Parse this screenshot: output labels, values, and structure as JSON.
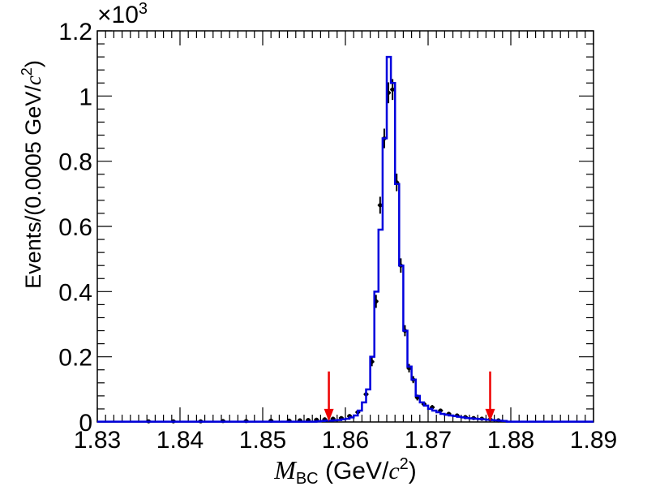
{
  "chart_data": {
    "type": "histogram",
    "xlabel_parts": {
      "var": "M",
      "sub": "BC",
      "unit_pre": " (GeV/",
      "unit_var": "c",
      "unit_sup": "2",
      "unit_post": ")"
    },
    "ylabel_parts": {
      "pre": "Events/(0.0005 GeV/",
      "var": "c",
      "sup": "2",
      "post": ")"
    },
    "y_multiplier": {
      "sym": "×10",
      "exp": "3"
    },
    "xlim": [
      1.83,
      1.89
    ],
    "ylim": [
      0,
      1.2
    ],
    "x_ticks": [
      1.83,
      1.84,
      1.85,
      1.86,
      1.87,
      1.88,
      1.89
    ],
    "y_ticks": [
      0,
      0.2,
      0.4,
      0.6,
      0.8,
      1,
      1.2
    ],
    "x_tick_labels": [
      "1.83",
      "1.84",
      "1.85",
      "1.86",
      "1.87",
      "1.88",
      "1.89"
    ],
    "y_tick_labels": [
      "0",
      "0.2",
      "0.4",
      "0.6",
      "0.8",
      "1",
      "1.2"
    ],
    "colors": {
      "fit": "#0000dd",
      "data": "#000000",
      "arrow": "#ee0000"
    },
    "cut_arrows_x": [
      1.858,
      1.8775
    ],
    "fit_edges": [
      1.83,
      1.8565,
      1.857,
      1.8575,
      1.858,
      1.8585,
      1.859,
      1.8595,
      1.86,
      1.8605,
      1.861,
      1.8615,
      1.862,
      1.8625,
      1.863,
      1.8635,
      1.864,
      1.8645,
      1.865,
      1.8655,
      1.866,
      1.8665,
      1.867,
      1.8675,
      1.868,
      1.8685,
      1.869,
      1.8695,
      1.87,
      1.8705,
      1.871,
      1.8715,
      1.872,
      1.8725,
      1.873,
      1.8735,
      1.874,
      1.8745,
      1.875,
      1.8755,
      1.876,
      1.8765,
      1.877,
      1.8775,
      1.878,
      1.8785,
      1.879,
      1.8795,
      1.89
    ],
    "fit_values": [
      0.001,
      0.002,
      0.003,
      0.004,
      0.004,
      0.005,
      0.006,
      0.008,
      0.01,
      0.014,
      0.02,
      0.035,
      0.06,
      0.1,
      0.2,
      0.4,
      0.59,
      0.87,
      1.12,
      1.04,
      0.73,
      0.48,
      0.28,
      0.17,
      0.13,
      0.08,
      0.06,
      0.05,
      0.04,
      0.035,
      0.03,
      0.025,
      0.022,
      0.02,
      0.018,
      0.016,
      0.014,
      0.012,
      0.011,
      0.01,
      0.009,
      0.008,
      0.007,
      0.006,
      0.005,
      0.004,
      0.003,
      0.001
    ],
    "data_points": {
      "x": [
        1.8362,
        1.8392,
        1.8425,
        1.8452,
        1.848,
        1.851,
        1.8532,
        1.8545,
        1.8555,
        1.8565,
        1.8575,
        1.8585,
        1.8595,
        1.8605,
        1.8615,
        1.8625,
        1.8632,
        1.8637,
        1.8642,
        1.8647,
        1.8652,
        1.8657,
        1.8662,
        1.8667,
        1.8672,
        1.8677,
        1.8682,
        1.8687,
        1.8695,
        1.8705,
        1.8715,
        1.8725,
        1.8735,
        1.8745,
        1.8755,
        1.8765,
        1.8775,
        1.8785
      ],
      "y": [
        0.002,
        0.002,
        0.002,
        0.003,
        0.003,
        0.004,
        0.004,
        0.005,
        0.006,
        0.007,
        0.008,
        0.01,
        0.012,
        0.018,
        0.03,
        0.085,
        0.185,
        0.37,
        0.665,
        0.87,
        1.01,
        1.02,
        0.735,
        0.48,
        0.28,
        0.165,
        0.13,
        0.075,
        0.055,
        0.045,
        0.035,
        0.025,
        0.02,
        0.015,
        0.012,
        0.01,
        0.008,
        0.005
      ],
      "err": [
        0.002,
        0.002,
        0.002,
        0.002,
        0.002,
        0.002,
        0.002,
        0.003,
        0.003,
        0.003,
        0.003,
        0.003,
        0.004,
        0.004,
        0.005,
        0.009,
        0.014,
        0.02,
        0.026,
        0.03,
        0.032,
        0.032,
        0.027,
        0.022,
        0.017,
        0.013,
        0.011,
        0.009,
        0.007,
        0.007,
        0.006,
        0.005,
        0.005,
        0.004,
        0.003,
        0.003,
        0.003,
        0.002
      ]
    }
  }
}
